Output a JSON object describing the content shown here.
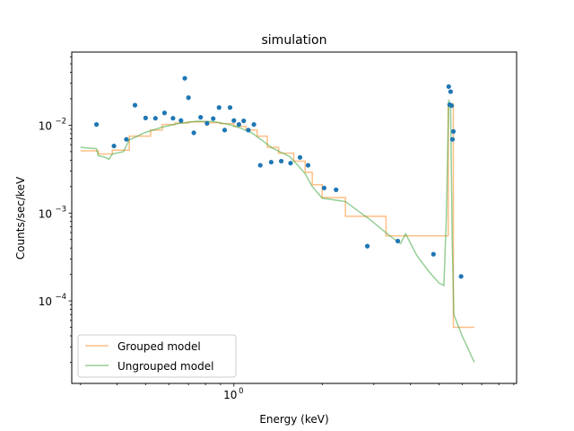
{
  "chart_data": {
    "type": "scatter",
    "title": "simulation",
    "xlabel": "Energy (keV)",
    "ylabel": "Counts/sec/keV",
    "xscale": "log",
    "yscale": "log",
    "xlim": [
      0.28,
      9.2
    ],
    "ylim": [
      1.15e-05,
      0.068
    ],
    "x_tick_labels": [
      {
        "value": 1,
        "mantissa": "10",
        "exp": "0"
      }
    ],
    "y_tick_labels": [
      {
        "value": 0.0001,
        "mantissa": "10",
        "exp": "−4"
      },
      {
        "value": 0.001,
        "mantissa": "10",
        "exp": "−3"
      },
      {
        "value": 0.01,
        "mantissa": "10",
        "exp": "−2"
      }
    ],
    "legend_position": "lower-left",
    "grid": false,
    "colors": {
      "data": "#1f77b4",
      "grouped": "#ff7f0e",
      "ungrouped": "#2ca02c"
    },
    "series": [
      {
        "name": "data",
        "kind": "points",
        "points": [
          [
            0.34,
            0.0102
          ],
          [
            0.39,
            0.0058
          ],
          [
            0.43,
            0.0069
          ],
          [
            0.46,
            0.0169
          ],
          [
            0.5,
            0.0121
          ],
          [
            0.54,
            0.012
          ],
          [
            0.58,
            0.0138
          ],
          [
            0.62,
            0.012
          ],
          [
            0.66,
            0.0113
          ],
          [
            0.68,
            0.0342
          ],
          [
            0.7,
            0.0206
          ],
          [
            0.73,
            0.0082
          ],
          [
            0.77,
            0.0123
          ],
          [
            0.81,
            0.0105
          ],
          [
            0.85,
            0.0119
          ],
          [
            0.89,
            0.0159
          ],
          [
            0.93,
            0.0088
          ],
          [
            0.97,
            0.0159
          ],
          [
            1.0,
            0.0113
          ],
          [
            1.04,
            0.0102
          ],
          [
            1.08,
            0.0112
          ],
          [
            1.12,
            0.0088
          ],
          [
            1.17,
            0.0102
          ],
          [
            1.23,
            0.0035
          ],
          [
            1.34,
            0.0038
          ],
          [
            1.45,
            0.0039
          ],
          [
            1.56,
            0.0037
          ],
          [
            1.68,
            0.0043
          ],
          [
            1.79,
            0.0035
          ],
          [
            2.03,
            0.00193
          ],
          [
            2.23,
            0.00184
          ],
          [
            2.85,
            0.00042
          ],
          [
            3.62,
            0.00048
          ],
          [
            4.79,
            0.00034
          ],
          [
            5.4,
            0.0275
          ],
          [
            5.44,
            0.0171
          ],
          [
            5.48,
            0.0241
          ],
          [
            5.52,
            0.0167
          ],
          [
            5.56,
            0.0069
          ],
          [
            5.6,
            0.0085
          ],
          [
            5.95,
            0.00019
          ]
        ]
      },
      {
        "name": "Grouped model",
        "kind": "step",
        "points": [
          [
            0.3,
            0.0051
          ],
          [
            0.345,
            0.0051
          ],
          [
            0.345,
            0.0047
          ],
          [
            0.385,
            0.0047
          ],
          [
            0.385,
            0.0052
          ],
          [
            0.44,
            0.0052
          ],
          [
            0.44,
            0.0075
          ],
          [
            0.52,
            0.0075
          ],
          [
            0.52,
            0.0088
          ],
          [
            0.57,
            0.0088
          ],
          [
            0.57,
            0.0102
          ],
          [
            0.63,
            0.0102
          ],
          [
            0.63,
            0.0106
          ],
          [
            0.7,
            0.0106
          ],
          [
            0.7,
            0.0109
          ],
          [
            0.8,
            0.0109
          ],
          [
            0.8,
            0.0107
          ],
          [
            0.9,
            0.0107
          ],
          [
            0.9,
            0.0104
          ],
          [
            1.0,
            0.0104
          ],
          [
            1.0,
            0.0097
          ],
          [
            1.1,
            0.0097
          ],
          [
            1.1,
            0.0088
          ],
          [
            1.2,
            0.0088
          ],
          [
            1.2,
            0.0075
          ],
          [
            1.3,
            0.0075
          ],
          [
            1.3,
            0.0056
          ],
          [
            1.42,
            0.0056
          ],
          [
            1.42,
            0.0048
          ],
          [
            1.6,
            0.0048
          ],
          [
            1.6,
            0.0039
          ],
          [
            1.75,
            0.0039
          ],
          [
            1.75,
            0.0029
          ],
          [
            1.85,
            0.0029
          ],
          [
            1.85,
            0.0021
          ],
          [
            2.0,
            0.0021
          ],
          [
            2.0,
            0.0015
          ],
          [
            2.4,
            0.0015
          ],
          [
            2.4,
            0.00092
          ],
          [
            3.3,
            0.00092
          ],
          [
            3.3,
            0.00055
          ],
          [
            5.38,
            0.00055
          ],
          [
            5.38,
            0.0175
          ],
          [
            5.6,
            0.0175
          ],
          [
            5.6,
            5e-05
          ],
          [
            6.6,
            5e-05
          ]
        ]
      },
      {
        "name": "Ungrouped model",
        "kind": "line",
        "points": [
          [
            0.3,
            0.0056
          ],
          [
            0.34,
            0.0054
          ],
          [
            0.345,
            0.0045
          ],
          [
            0.365,
            0.0043
          ],
          [
            0.375,
            0.0041
          ],
          [
            0.385,
            0.0047
          ],
          [
            0.42,
            0.005
          ],
          [
            0.44,
            0.0068
          ],
          [
            0.5,
            0.0083
          ],
          [
            0.57,
            0.0095
          ],
          [
            0.65,
            0.0105
          ],
          [
            0.75,
            0.0111
          ],
          [
            0.85,
            0.011
          ],
          [
            0.95,
            0.0103
          ],
          [
            1.05,
            0.0093
          ],
          [
            1.15,
            0.0082
          ],
          [
            1.25,
            0.0067
          ],
          [
            1.35,
            0.0055
          ],
          [
            1.45,
            0.0049
          ],
          [
            1.55,
            0.0044
          ],
          [
            1.65,
            0.0035
          ],
          [
            1.75,
            0.0028
          ],
          [
            1.85,
            0.002
          ],
          [
            2.0,
            0.00148
          ],
          [
            2.4,
            0.00135
          ],
          [
            2.9,
            0.00085
          ],
          [
            3.4,
            0.00055
          ],
          [
            3.7,
            0.00045
          ],
          [
            3.85,
            0.00058
          ],
          [
            4.2,
            0.00033
          ],
          [
            4.6,
            0.00022
          ],
          [
            5.0,
            0.00016
          ],
          [
            5.2,
            0.00015
          ],
          [
            5.3,
            0.0009
          ],
          [
            5.4,
            0.0195
          ],
          [
            5.48,
            0.016
          ],
          [
            5.55,
            0.0005
          ],
          [
            5.62,
            7e-05
          ],
          [
            6.0,
            4e-05
          ],
          [
            6.6,
            2e-05
          ]
        ]
      }
    ]
  }
}
